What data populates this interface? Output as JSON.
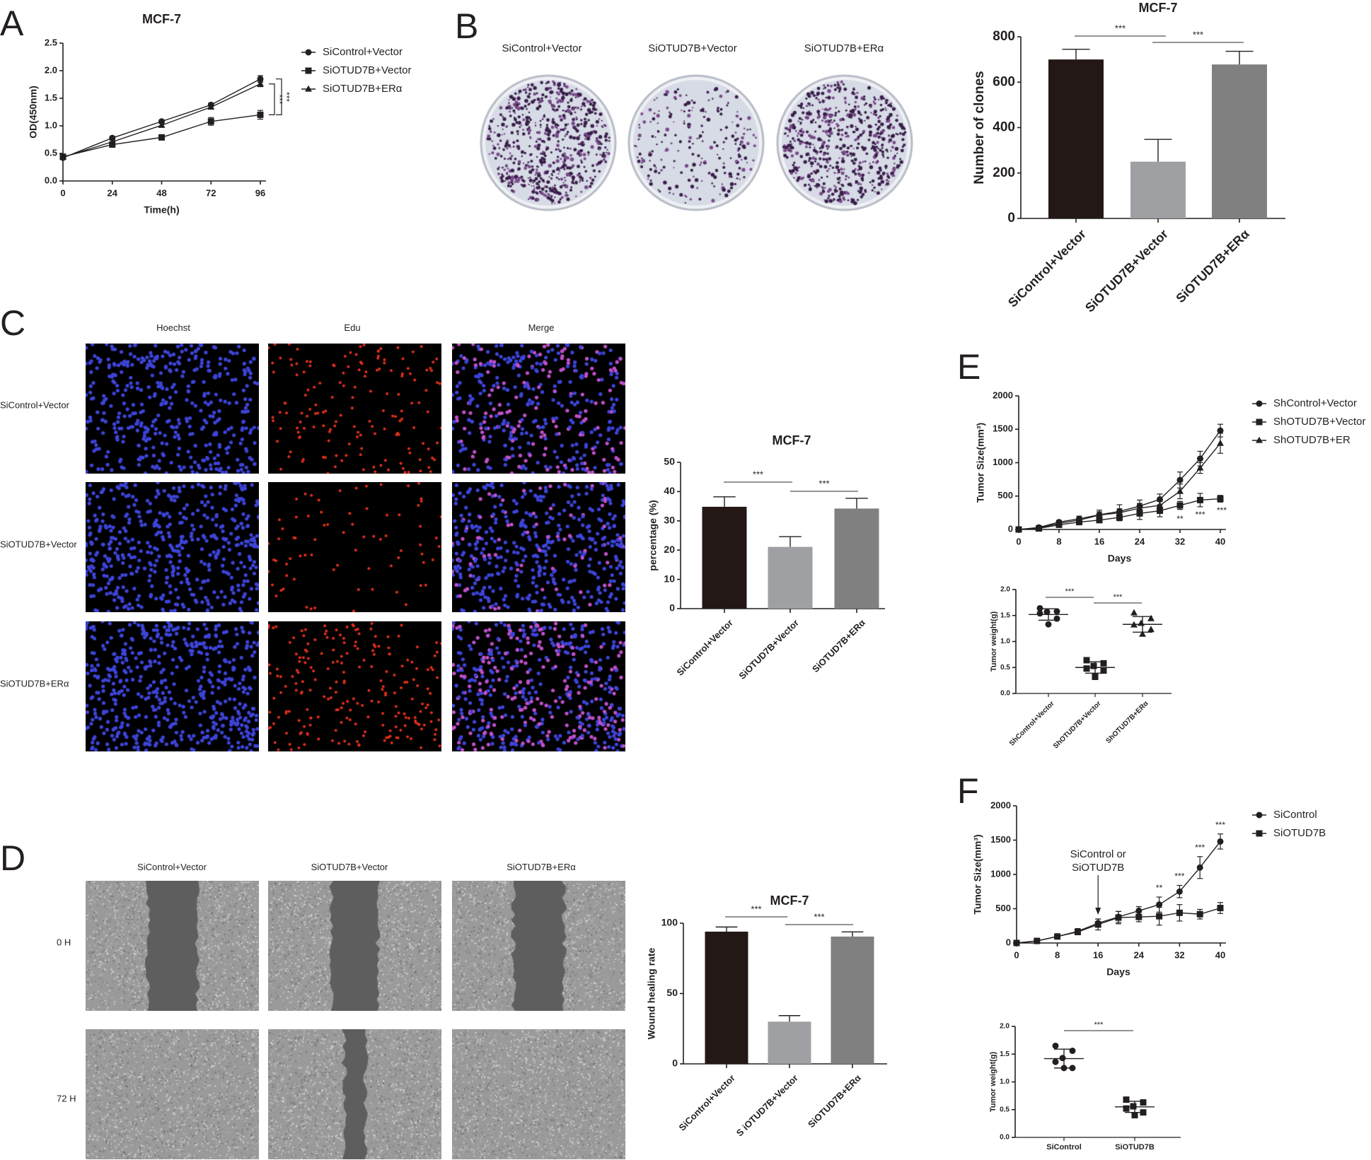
{
  "figure": {
    "panel_letters": [
      "A",
      "B",
      "C",
      "D",
      "E",
      "F"
    ]
  },
  "colors": {
    "ink": "#231f20",
    "bar_dark": "#231815",
    "bar_light": "#9fa0a4",
    "bar_mid": "#808080",
    "hoechst": "#3d44d8",
    "edu": "#e3301c",
    "merge_pink": "#c050c8",
    "plate_bg": "#d6dbe6",
    "colony": "#3a1f4a",
    "wound_gray": "#8a8a8a"
  },
  "panel_b": {
    "plate_labels": [
      "SiControl+Vector",
      "SiOTUD7B+Vector",
      "SiOTUD7B+ERα"
    ]
  },
  "panel_c": {
    "column_headers": [
      "Hoechst",
      "Edu",
      "Merge"
    ],
    "row_labels": [
      "SiControl+Vector",
      "SiOTUD7B+Vector",
      "SiOTUD7B+ERα"
    ]
  },
  "panel_d": {
    "column_headers": [
      "SiControl+Vector",
      "SiOTUD7B+Vector",
      "SiOTUD7B+ERα"
    ],
    "row_labels": [
      "0 H",
      "72 H"
    ]
  },
  "chart_data": [
    {
      "panel": "A",
      "type": "line",
      "title": "MCF-7",
      "xlabel": "Time(h)",
      "ylabel": "OD(450nm)",
      "x": [
        0,
        24,
        48,
        72,
        96
      ],
      "xlim": [
        0,
        96
      ],
      "xticks": [
        0,
        24,
        48,
        72,
        96
      ],
      "xtick_labels": [
        "0",
        "24",
        "48",
        "72",
        "96"
      ],
      "ylim": [
        0,
        2.5
      ],
      "yticks": [
        0,
        0.5,
        1,
        1.5,
        2,
        2.5
      ],
      "ytick_labels": [
        "0.0",
        "0.5",
        "1.0",
        "1.5",
        "2.0",
        "2.5"
      ],
      "grid": false,
      "legend": "right",
      "series": [
        {
          "name": "SiControl+Vector",
          "marker": "circle",
          "values": [
            0.42,
            0.78,
            1.08,
            1.38,
            1.85
          ],
          "errors": [
            0.03,
            0.03,
            0.03,
            0.03,
            0.06
          ]
        },
        {
          "name": "SiOTUD7B+Vector",
          "marker": "square",
          "values": [
            0.44,
            0.66,
            0.79,
            1.08,
            1.2
          ],
          "errors": [
            0.03,
            0.03,
            0.03,
            0.07,
            0.08
          ]
        },
        {
          "name": "SiOTUD7B+ERα",
          "marker": "triangle",
          "values": [
            0.43,
            0.71,
            1.01,
            1.34,
            1.76
          ],
          "errors": [
            0.03,
            0.03,
            0.03,
            0.03,
            0.05
          ]
        }
      ],
      "significance": [
        {
          "label": "***",
          "between": [
            0,
            1
          ]
        },
        {
          "label": "***",
          "between": [
            2,
            1
          ]
        }
      ]
    },
    {
      "panel": "B",
      "type": "bar",
      "title": "MCF-7",
      "xlabel": "",
      "ylabel": "Number of clones",
      "categories": [
        "SiControl+Vector",
        "SiOTUD7B+Vector",
        "SiOTUD7B+ERα"
      ],
      "values": [
        700,
        250,
        678
      ],
      "errors": [
        45,
        98,
        58
      ],
      "bar_colors": [
        "#231815",
        "#9fa0a4",
        "#808080"
      ],
      "ylim": [
        0,
        800
      ],
      "yticks": [
        0,
        200,
        400,
        600,
        800
      ],
      "ytick_labels": [
        "0",
        "200",
        "400",
        "600",
        "800"
      ],
      "grid": false,
      "significance": [
        {
          "label": "***",
          "from": 0,
          "to": 1
        },
        {
          "label": "***",
          "from": 1,
          "to": 2
        }
      ]
    },
    {
      "panel": "C",
      "type": "bar",
      "title": "MCF-7",
      "xlabel": "",
      "ylabel": "percentage (%)",
      "categories": [
        "SiControl+Vector",
        "SiOTUD7B+Vector",
        "SiOTUD7B+ERα"
      ],
      "values": [
        34.8,
        21.1,
        34.2
      ],
      "errors": [
        3.4,
        3.5,
        3.5
      ],
      "bar_colors": [
        "#231815",
        "#9fa0a4",
        "#808080"
      ],
      "ylim": [
        0,
        50
      ],
      "yticks": [
        0,
        10,
        20,
        30,
        40,
        50
      ],
      "ytick_labels": [
        "0",
        "10",
        "20",
        "30",
        "40",
        "50"
      ],
      "grid": false,
      "significance": [
        {
          "label": "***",
          "from": 0,
          "to": 1
        },
        {
          "label": "***",
          "from": 1,
          "to": 2
        }
      ]
    },
    {
      "panel": "D",
      "type": "bar",
      "title": "MCF-7",
      "xlabel": "",
      "ylabel": "Wound healing rate",
      "categories": [
        "SiControl+Vector",
        "S iOTUD7B+Vector",
        "SiOTUD7B+ERα"
      ],
      "values": [
        94,
        30,
        90.5
      ],
      "errors": [
        3.3,
        4.3,
        3.3
      ],
      "bar_colors": [
        "#231815",
        "#9fa0a4",
        "#808080"
      ],
      "ylim": [
        0,
        100
      ],
      "yticks": [
        0,
        50,
        100
      ],
      "ytick_labels": [
        "0",
        "50",
        "100"
      ],
      "grid": false,
      "significance": [
        {
          "label": "***",
          "from": 0,
          "to": 1
        },
        {
          "label": "***",
          "from": 1,
          "to": 2
        }
      ]
    },
    {
      "panel": "E",
      "type": "line",
      "title": "",
      "xlabel": "Days",
      "ylabel": "Tumor Size(mm³)",
      "x": [
        0,
        4,
        8,
        12,
        16,
        20,
        24,
        28,
        32,
        36,
        40
      ],
      "xlim": [
        0,
        40
      ],
      "xticks": [
        0,
        8,
        16,
        24,
        32,
        40
      ],
      "xtick_labels": [
        "0",
        "8",
        "16",
        "24",
        "32",
        "40"
      ],
      "ylim": [
        0,
        2000
      ],
      "yticks": [
        0,
        500,
        1000,
        1500,
        2000
      ],
      "ytick_labels": [
        "0",
        "500",
        "1000",
        "1500",
        "2000"
      ],
      "grid": false,
      "legend": "right",
      "series": [
        {
          "name": "ShControl+Vector",
          "marker": "circle",
          "values": [
            0,
            30,
            110,
            160,
            220,
            270,
            350,
            450,
            740,
            1060,
            1480
          ],
          "errors": [
            10,
            15,
            25,
            40,
            70,
            100,
            90,
            80,
            120,
            110,
            95
          ]
        },
        {
          "name": "ShOTUD7B+Vector",
          "marker": "square",
          "values": [
            0,
            15,
            70,
            110,
            140,
            180,
            240,
            280,
            360,
            440,
            460
          ],
          "errors": [
            10,
            10,
            20,
            30,
            40,
            50,
            90,
            90,
            60,
            100,
            50
          ]
        },
        {
          "name": "ShOTUD7B+ER",
          "marker": "triangle",
          "values": [
            0,
            20,
            90,
            140,
            215,
            250,
            320,
            360,
            570,
            920,
            1290
          ],
          "errors": [
            10,
            15,
            25,
            40,
            50,
            60,
            70,
            60,
            110,
            80,
            150
          ]
        }
      ],
      "annotations": [
        {
          "x": 32,
          "label": "**"
        },
        {
          "x": 36,
          "label": "***"
        },
        {
          "x": 40,
          "label": "***"
        }
      ]
    },
    {
      "panel": "E",
      "type": "scatter",
      "title": "",
      "xlabel": "",
      "ylabel": "Tumor weight(g)",
      "categories": [
        "ShControl+Vector",
        "ShOTUD7B+Vector",
        "ShOTUD7B+ERα"
      ],
      "markers": [
        "circle",
        "square",
        "triangle"
      ],
      "points": [
        [
          1.64,
          1.58,
          1.57,
          1.54,
          1.44,
          1.33
        ],
        [
          0.64,
          0.58,
          0.53,
          0.48,
          0.44,
          0.32
        ],
        [
          1.55,
          1.44,
          1.35,
          1.32,
          1.23,
          1.14
        ]
      ],
      "means": [
        1.52,
        0.5,
        1.33
      ],
      "sd": [
        0.11,
        0.11,
        0.15
      ],
      "ylim": [
        0,
        2
      ],
      "yticks": [
        0,
        0.5,
        1,
        1.5,
        2
      ],
      "ytick_labels": [
        "0.0",
        "0.5",
        "1.0",
        "1.5",
        "2.0"
      ],
      "grid": false,
      "significance": [
        {
          "label": "***",
          "from": 0,
          "to": 1
        },
        {
          "label": "***",
          "from": 1,
          "to": 2
        }
      ]
    },
    {
      "panel": "F",
      "type": "line",
      "title": "",
      "xlabel": "Days",
      "ylabel": "Tumor Size(mm³)",
      "x": [
        0,
        4,
        8,
        12,
        16,
        20,
        24,
        28,
        32,
        36,
        40
      ],
      "xlim": [
        0,
        40
      ],
      "xticks": [
        0,
        8,
        16,
        24,
        32,
        40
      ],
      "xtick_labels": [
        "0",
        "8",
        "16",
        "24",
        "32",
        "40"
      ],
      "ylim": [
        0,
        2000
      ],
      "yticks": [
        0,
        500,
        1000,
        1500,
        2000
      ],
      "ytick_labels": [
        "0",
        "500",
        "1000",
        "1500",
        "2000"
      ],
      "grid": false,
      "legend": "right",
      "series": [
        {
          "name": "SiControl",
          "marker": "circle",
          "values": [
            0,
            30,
            95,
            170,
            290,
            380,
            470,
            560,
            750,
            1100,
            1480
          ],
          "errors": [
            10,
            15,
            20,
            40,
            60,
            80,
            60,
            110,
            90,
            160,
            110
          ]
        },
        {
          "name": "SiOTUD7B",
          "marker": "square",
          "values": [
            0,
            30,
            95,
            160,
            270,
            370,
            380,
            390,
            440,
            420,
            510
          ],
          "errors": [
            10,
            15,
            20,
            40,
            80,
            90,
            70,
            130,
            120,
            70,
            80
          ]
        }
      ],
      "callout": {
        "x": 16,
        "lines": [
          "SiControl or",
          "SiOTUD7B"
        ]
      },
      "annotations": [
        {
          "x": 28,
          "label": "**"
        },
        {
          "x": 32,
          "label": "***"
        },
        {
          "x": 36,
          "label": "***"
        },
        {
          "x": 40,
          "label": "***"
        }
      ]
    },
    {
      "panel": "F",
      "type": "scatter",
      "title": "",
      "xlabel": "",
      "ylabel": "Tumor weight(g)",
      "categories": [
        "SiControl",
        "SiOTUD7B"
      ],
      "markers": [
        "circle",
        "square"
      ],
      "points": [
        [
          1.65,
          1.56,
          1.43,
          1.36,
          1.25,
          1.25
        ],
        [
          0.68,
          0.63,
          0.56,
          0.52,
          0.45,
          0.4
        ]
      ],
      "means": [
        1.42,
        0.55
      ],
      "sd": [
        0.17,
        0.1
      ],
      "ylim": [
        0,
        2
      ],
      "yticks": [
        0,
        0.5,
        1,
        1.5,
        2
      ],
      "ytick_labels": [
        "0.0",
        "0.5",
        "1.0",
        "1.5",
        "2.0"
      ],
      "grid": false,
      "significance": [
        {
          "label": "***",
          "from": 0,
          "to": 1
        }
      ]
    }
  ]
}
